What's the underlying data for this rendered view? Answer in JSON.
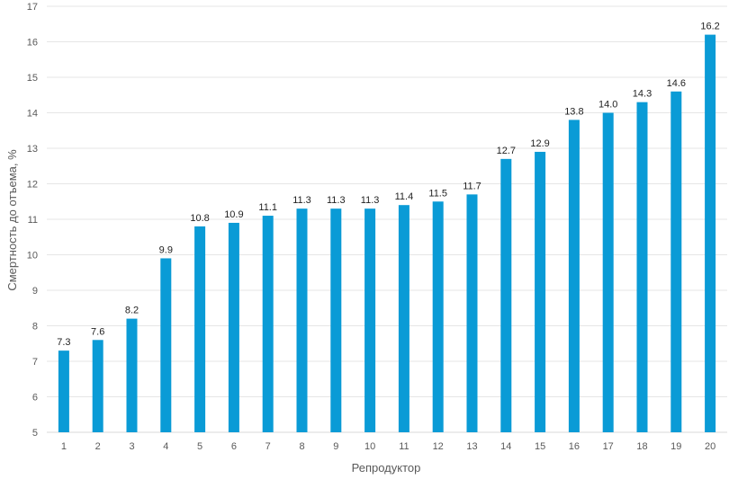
{
  "chart_data": {
    "type": "bar",
    "title": "",
    "xlabel": "Репродуктор",
    "ylabel": "Смертность до отъема, %",
    "categories": [
      "1",
      "2",
      "3",
      "4",
      "5",
      "6",
      "7",
      "8",
      "9",
      "10",
      "11",
      "12",
      "13",
      "14",
      "15",
      "16",
      "17",
      "18",
      "19",
      "20"
    ],
    "values": [
      7.3,
      7.6,
      8.2,
      9.9,
      10.8,
      10.9,
      11.1,
      11.3,
      11.3,
      11.3,
      11.4,
      11.5,
      11.7,
      12.7,
      12.9,
      13.8,
      14.0,
      14.3,
      14.6,
      16.2
    ],
    "data_labels": [
      "7.3",
      "7.6",
      "8.2",
      "9.9",
      "10.8",
      "10.9",
      "11.1",
      "11.3",
      "11.3",
      "11.3",
      "11.4",
      "11.5",
      "11.7",
      "12.7",
      "12.9",
      "13.8",
      "14.0",
      "14.3",
      "14.6",
      "16.2"
    ],
    "ylim": [
      5,
      17
    ],
    "yticks": [
      "5",
      "6",
      "7",
      "8",
      "9",
      "10",
      "11",
      "12",
      "13",
      "14",
      "15",
      "16",
      "17"
    ],
    "grid": true,
    "legend": "none",
    "bar_color": "#0a9bd6"
  }
}
